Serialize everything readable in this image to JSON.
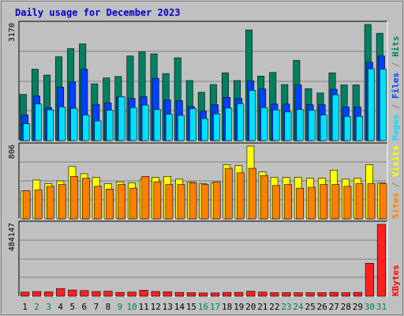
{
  "chart_data": {
    "type": "bar",
    "title": "Daily usage for December 2023",
    "x": [
      "1",
      "2",
      "3",
      "4",
      "5",
      "6",
      "7",
      "8",
      "9",
      "10",
      "11",
      "12",
      "13",
      "14",
      "15",
      "16",
      "17",
      "18",
      "19",
      "20",
      "21",
      "22",
      "23",
      "24",
      "25",
      "26",
      "27",
      "28",
      "29",
      "30",
      "31"
    ],
    "weekend_days": [
      "2",
      "3",
      "9",
      "10",
      "16",
      "17",
      "23",
      "24",
      "30",
      "31"
    ],
    "panels": [
      {
        "name": "hits-files-pages",
        "ymax": 3170,
        "ymax_label": "3170",
        "legend": [
          {
            "text": "Pages",
            "color": "#00e0ff"
          },
          {
            "text": " / ",
            "color": "#808080"
          },
          {
            "text": "Files",
            "color": "#0040ff"
          },
          {
            "text": " / ",
            "color": "#808080"
          },
          {
            "text": "Hits",
            "color": "#00805c"
          }
        ],
        "series": [
          {
            "name": "Hits",
            "color": "#008060",
            "values": [
              1260,
              1950,
              1790,
              2290,
              2510,
              2640,
              1550,
              1710,
              1750,
              2310,
              2420,
              2370,
              1830,
              2260,
              1640,
              1320,
              1530,
              1850,
              1640,
              3020,
              1760,
              1860,
              1530,
              2190,
              1420,
              1300,
              1850,
              1520,
              1520,
              3170,
              2930
            ]
          },
          {
            "name": "Files",
            "color": "#0040ff",
            "values": [
              700,
              1220,
              900,
              1460,
              1600,
              1950,
              990,
              1030,
              1200,
              1150,
              1200,
              1700,
              1110,
              1090,
              930,
              800,
              980,
              1180,
              1150,
              1630,
              1410,
              1000,
              1000,
              1520,
              980,
              980,
              1400,
              920,
              920,
              2140,
              2310
            ]
          },
          {
            "name": "Pages",
            "color": "#00e0ff",
            "values": [
              460,
              1000,
              840,
              920,
              880,
              700,
              540,
              830,
              1200,
              900,
              970,
              850,
              720,
              690,
              870,
              600,
              730,
              890,
              1010,
              1370,
              900,
              840,
              780,
              850,
              830,
              700,
              1250,
              660,
              660,
              1960,
              1950
            ]
          }
        ]
      },
      {
        "name": "visits-sites",
        "ymax": 806,
        "ymax_label": "806",
        "legend": [
          {
            "text": "Sites",
            "color": "#ff8000"
          },
          {
            "text": " / ",
            "color": "#808080"
          },
          {
            "text": "Visits",
            "color": "#ffff00"
          }
        ],
        "series": [
          {
            "name": "Visits",
            "color": "#ffff00",
            "values": [
              310,
              430,
              390,
              420,
              580,
              500,
              460,
              390,
              410,
              400,
              440,
              460,
              470,
              440,
              410,
              390,
              400,
              600,
              590,
              806,
              520,
              460,
              460,
              460,
              450,
              450,
              540,
              440,
              450,
              600,
              400
            ]
          },
          {
            "name": "Sites",
            "color": "#ff8000",
            "values": [
              310,
              320,
              360,
              380,
              470,
              450,
              360,
              330,
              380,
              340,
              470,
              410,
              380,
              380,
              400,
              380,
              410,
              560,
              510,
              560,
              480,
              370,
              380,
              340,
              350,
              380,
              380,
              360,
              390,
              390,
              390
            ]
          }
        ]
      },
      {
        "name": "kbytes",
        "ymax": 484147,
        "ymax_label": "484147",
        "legend": [
          {
            "text": "KBytes",
            "color": "#ff0000"
          }
        ],
        "series": [
          {
            "name": "KBytes",
            "color": "#ff2020",
            "values": [
              28000,
              32000,
              30000,
              52000,
              42000,
              38000,
              32000,
              34000,
              26000,
              28000,
              40000,
              32000,
              30000,
              26000,
              24000,
              22000,
              22000,
              26000,
              26000,
              34000,
              28000,
              24000,
              24000,
              24000,
              24000,
              24000,
              26000,
              24000,
              26000,
              222000,
              484147
            ]
          }
        ]
      }
    ]
  }
}
